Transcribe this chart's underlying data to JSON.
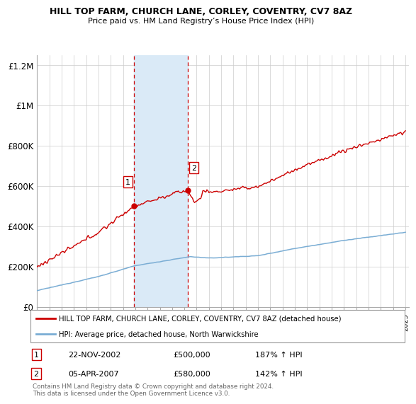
{
  "title": "HILL TOP FARM, CHURCH LANE, CORLEY, COVENTRY, CV7 8AZ",
  "subtitle": "Price paid vs. HM Land Registry’s House Price Index (HPI)",
  "legend_label_red": "HILL TOP FARM, CHURCH LANE, CORLEY, COVENTRY, CV7 8AZ (detached house)",
  "legend_label_blue": "HPI: Average price, detached house, North Warwickshire",
  "sale1_date": "22-NOV-2002",
  "sale1_price": "£500,000",
  "sale1_hpi": "187% ↑ HPI",
  "sale2_date": "05-APR-2007",
  "sale2_price": "£580,000",
  "sale2_hpi": "142% ↑ HPI",
  "footer": "Contains HM Land Registry data © Crown copyright and database right 2024.\nThis data is licensed under the Open Government Licence v3.0.",
  "ylim": [
    0,
    1250000
  ],
  "yticks": [
    0,
    200000,
    400000,
    600000,
    800000,
    1000000,
    1200000
  ],
  "ytick_labels": [
    "£0",
    "£200K",
    "£400K",
    "£600K",
    "£800K",
    "£1M",
    "£1.2M"
  ],
  "red_color": "#cc0000",
  "blue_color": "#7aadd4",
  "shade_color": "#daeaf7",
  "sale1_year": 2002.9,
  "sale2_year": 2007.27,
  "sale1_price_val": 500000,
  "sale2_price_val": 580000,
  "xmin": 1995,
  "xmax": 2025.3
}
